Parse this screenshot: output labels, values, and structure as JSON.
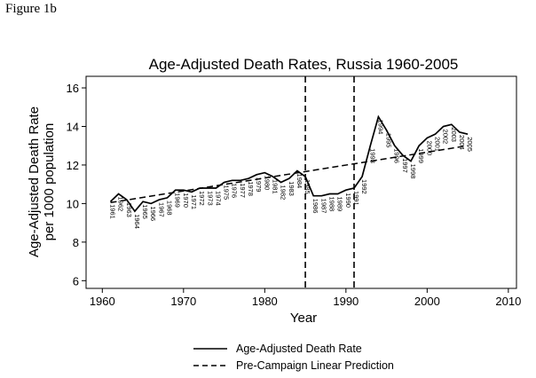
{
  "figure_label": "Figure 1b",
  "colors": {
    "line": "#000000",
    "background": "#ffffff"
  },
  "chart_data": {
    "type": "line",
    "title": "Age-Adjusted Death Rates, Russia 1960-2005",
    "xlabel": "Year",
    "ylabel_lines": [
      "Age-Adjusted Death Rate",
      "per 1000 population"
    ],
    "xlim": [
      1958,
      2011
    ],
    "ylim": [
      5.6,
      16.6
    ],
    "xticks": [
      1960,
      1970,
      1980,
      1990,
      2000,
      2010
    ],
    "yticks": [
      6,
      8,
      10,
      12,
      14,
      16
    ],
    "xtick_labels": [
      "1960",
      "1970",
      "1980",
      "1990",
      "2000",
      "2010"
    ],
    "ytick_labels": [
      "6",
      "8",
      "10",
      "12",
      "14",
      "16"
    ],
    "vertical_lines": [
      1985,
      1991
    ],
    "series": [
      {
        "name": "Age-Adjusted Death Rate",
        "style": "solid",
        "x": [
          1961,
          1962,
          1963,
          1964,
          1965,
          1966,
          1967,
          1968,
          1969,
          1970,
          1971,
          1972,
          1973,
          1974,
          1975,
          1976,
          1977,
          1978,
          1979,
          1980,
          1981,
          1982,
          1983,
          1984,
          1985,
          1986,
          1987,
          1988,
          1989,
          1990,
          1991,
          1992,
          1993,
          1994,
          1995,
          1996,
          1997,
          1998,
          1999,
          2000,
          2001,
          2002,
          2003,
          2004,
          2005
        ],
        "y": [
          10.1,
          10.5,
          10.2,
          9.6,
          10.1,
          10.0,
          10.2,
          10.3,
          10.7,
          10.7,
          10.6,
          10.8,
          10.8,
          10.8,
          11.1,
          11.2,
          11.2,
          11.3,
          11.5,
          11.6,
          11.4,
          11.1,
          11.3,
          11.7,
          11.4,
          10.4,
          10.4,
          10.5,
          10.5,
          10.7,
          10.8,
          11.4,
          13.0,
          14.5,
          13.8,
          13.0,
          12.5,
          12.2,
          13.0,
          13.4,
          13.6,
          14.0,
          14.1,
          13.7,
          13.6
        ],
        "labels": [
          "1961",
          "1962",
          "1963",
          "1964",
          "1965",
          "1966",
          "1967",
          "1968",
          "1969",
          "1970",
          "1971",
          "1972",
          "1973",
          "1974",
          "1975",
          "1976",
          "1977",
          "1978",
          "1979",
          "1980",
          "1981",
          "1982",
          "1983",
          "1984",
          "1985",
          "1986",
          "1987",
          "1988",
          "1989",
          "1990",
          "1991",
          "1992",
          "1993",
          "1994",
          "1995",
          "1996",
          "1997",
          "1998",
          "1999",
          "2000",
          "2001",
          "2002",
          "2003",
          "2004",
          "2005"
        ]
      },
      {
        "name": "Pre-Campaign Linear Prediction",
        "style": "dashed",
        "x": [
          1961,
          2005
        ],
        "y": [
          10.05,
          13.0
        ]
      }
    ],
    "legend": [
      {
        "label": "Age-Adjusted Death Rate",
        "style": "solid"
      },
      {
        "label": "Pre-Campaign Linear Prediction",
        "style": "dashed"
      }
    ],
    "legend_position": "bottom"
  }
}
